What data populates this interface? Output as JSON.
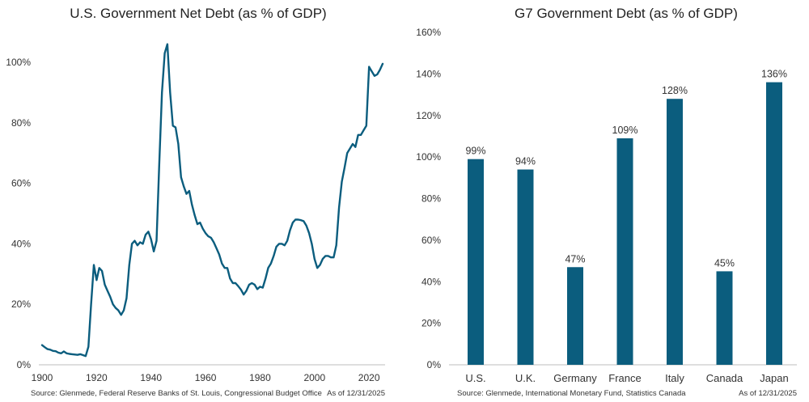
{
  "colors": {
    "accent": "#0b5d7e",
    "axis": "#bdbdbd",
    "text": "#222222"
  },
  "left_footer": {
    "source": "Source: Glenmede, Federal Reserve Banks of St. Louis, Congressional Budget Office",
    "asof": "As of 12/31/2025"
  },
  "right_footer": {
    "source": "Source: Glenmede, International Monetary Fund, Statistics Canada",
    "asof": "As of 12/31/2025"
  },
  "chart_data": [
    {
      "type": "line",
      "title": "U.S. Government Net Debt (as % of GDP)",
      "xlim": [
        1900,
        2025
      ],
      "ylim": [
        0,
        110
      ],
      "xticks": [
        1900,
        1920,
        1940,
        1960,
        1980,
        2000,
        2020
      ],
      "xtick_labels": [
        "1900",
        "1920",
        "1940",
        "1960",
        "1980",
        "2000",
        "2020"
      ],
      "yticks": [
        0,
        20,
        40,
        60,
        80,
        100
      ],
      "ytick_labels": [
        "0%",
        "20%",
        "40%",
        "60%",
        "80%",
        "100%"
      ],
      "grid": false,
      "series": [
        {
          "x": [
            1900,
            1901,
            1902,
            1903,
            1904,
            1905,
            1906,
            1907,
            1908,
            1909,
            1910,
            1911,
            1912,
            1913,
            1914,
            1915,
            1916,
            1917,
            1918,
            1919,
            1920,
            1921,
            1922,
            1923,
            1924,
            1925,
            1926,
            1927,
            1928,
            1929,
            1930,
            1931,
            1932,
            1933,
            1934,
            1935,
            1936,
            1937,
            1938,
            1939,
            1940,
            1941,
            1942,
            1943,
            1944,
            1945,
            1946,
            1947,
            1948,
            1949,
            1950,
            1951,
            1952,
            1953,
            1954,
            1955,
            1956,
            1957,
            1958,
            1959,
            1960,
            1961,
            1962,
            1963,
            1964,
            1965,
            1966,
            1967,
            1968,
            1969,
            1970,
            1971,
            1972,
            1973,
            1974,
            1975,
            1976,
            1977,
            1978,
            1979,
            1980,
            1981,
            1982,
            1983,
            1984,
            1985,
            1986,
            1987,
            1988,
            1989,
            1990,
            1991,
            1992,
            1993,
            1994,
            1995,
            1996,
            1997,
            1998,
            1999,
            2000,
            2001,
            2002,
            2003,
            2004,
            2005,
            2006,
            2007,
            2008,
            2009,
            2010,
            2011,
            2012,
            2013,
            2014,
            2015,
            2016,
            2017,
            2018,
            2019,
            2020,
            2021,
            2022,
            2023,
            2024,
            2025
          ],
          "values": [
            6.5,
            5.8,
            5.2,
            5.0,
            4.6,
            4.5,
            4.0,
            3.8,
            4.4,
            3.8,
            3.6,
            3.5,
            3.4,
            3.3,
            3.5,
            3.2,
            2.9,
            6.0,
            20.0,
            33.0,
            28.0,
            32.0,
            31.0,
            26.5,
            24.5,
            22.5,
            20.0,
            18.8,
            18.0,
            16.5,
            18.0,
            22.0,
            33.0,
            40.0,
            41.0,
            39.5,
            40.5,
            40.0,
            43.0,
            44.0,
            41.5,
            37.5,
            41.0,
            66.0,
            90.0,
            103.0,
            106.0,
            90.0,
            79.0,
            78.5,
            73.0,
            62.0,
            59.0,
            56.5,
            57.5,
            53.0,
            49.5,
            46.5,
            47.0,
            45.0,
            43.5,
            42.5,
            42.0,
            40.5,
            38.5,
            36.5,
            33.5,
            32.0,
            32.0,
            28.5,
            27.0,
            27.0,
            26.0,
            24.8,
            23.2,
            24.5,
            26.5,
            27.0,
            26.5,
            25.0,
            25.8,
            25.5,
            28.5,
            32.0,
            33.5,
            36.0,
            39.0,
            40.0,
            40.0,
            39.5,
            41.0,
            44.5,
            47.0,
            48.0,
            48.0,
            47.8,
            47.5,
            46.0,
            43.5,
            40.0,
            35.0,
            32.0,
            33.0,
            35.0,
            36.0,
            36.0,
            35.5,
            35.5,
            39.5,
            52.0,
            60.5,
            65.0,
            70.0,
            71.5,
            73.0,
            72.0,
            76.0,
            76.0,
            77.5,
            79.0,
            98.5,
            97.0,
            95.5,
            96.0,
            97.5,
            99.5
          ]
        }
      ]
    },
    {
      "type": "bar",
      "title": "G7 Government Debt (as % of GDP)",
      "categories": [
        "U.S.",
        "U.K.",
        "Germany",
        "France",
        "Italy",
        "Canada",
        "Japan"
      ],
      "values": [
        99,
        94,
        47,
        109,
        128,
        45,
        136
      ],
      "value_labels": [
        "99%",
        "94%",
        "47%",
        "109%",
        "128%",
        "45%",
        "136%"
      ],
      "ylim": [
        0,
        160
      ],
      "yticks": [
        0,
        20,
        40,
        60,
        80,
        100,
        120,
        140,
        160
      ],
      "ytick_labels": [
        "0%",
        "20%",
        "40%",
        "60%",
        "80%",
        "100%",
        "120%",
        "140%",
        "160%"
      ],
      "grid": false
    }
  ]
}
